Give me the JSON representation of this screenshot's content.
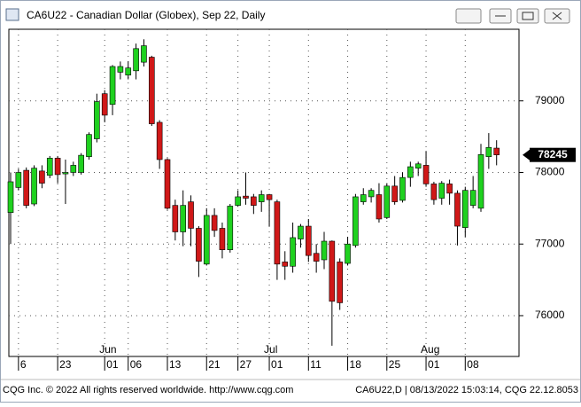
{
  "window": {
    "title": "CA6U22 - Canadian Dollar (Globex), Sep 22, Daily"
  },
  "chart_data": {
    "type": "candlestick",
    "categories": [
      null,
      "6",
      null,
      null,
      null,
      null,
      "23",
      null,
      null,
      null,
      null,
      null,
      "01",
      null,
      null,
      "06",
      null,
      null,
      null,
      null,
      "13",
      null,
      null,
      null,
      null,
      "21",
      null,
      null,
      null,
      "27",
      null,
      null,
      null,
      "01",
      null,
      null,
      null,
      null,
      "11",
      null,
      null,
      null,
      null,
      "18",
      null,
      null,
      null,
      null,
      "25",
      null,
      null,
      null,
      null,
      "01",
      null,
      null,
      null,
      null,
      "08",
      null,
      null,
      null,
      null
    ],
    "month_labels": [
      {
        "index": 12,
        "label": "Jun"
      },
      {
        "index": 33,
        "label": "Jul"
      },
      {
        "index": 53,
        "label": "Aug"
      }
    ],
    "open": [
      77440,
      77790,
      78030,
      77560,
      78020,
      77960,
      78200,
      77980,
      78000,
      78000,
      78220,
      78470,
      79100,
      78950,
      79400,
      79360,
      79420,
      79540,
      79610,
      78700,
      78180,
      77540,
      77170,
      77590,
      77220,
      76720,
      77400,
      77220,
      76920,
      77540,
      77670,
      77660,
      77590,
      77690,
      77590,
      76750,
      76690,
      77070,
      77250,
      76870,
      76780,
      77040,
      76750,
      76730,
      76980,
      77590,
      77660,
      77690,
      77370,
      77810,
      77610,
      77930,
      78060,
      78100,
      77840,
      77640,
      77840,
      77710,
      77230,
      77540,
      77500,
      78220,
      78340
    ],
    "high": [
      78000,
      78050,
      78070,
      78100,
      78100,
      78230,
      78230,
      78180,
      78150,
      78270,
      78560,
      79100,
      79150,
      79500,
      79550,
      79550,
      79800,
      79860,
      79630,
      78730,
      78200,
      77620,
      77750,
      77680,
      77250,
      77500,
      77500,
      77300,
      77560,
      77750,
      78000,
      77700,
      77750,
      77700,
      77620,
      76900,
      77300,
      77280,
      77350,
      77000,
      77170,
      77050,
      76800,
      77100,
      77700,
      77780,
      77780,
      77850,
      77850,
      77950,
      78000,
      78150,
      78150,
      78300,
      77870,
      77880,
      77900,
      77750,
      77800,
      77950,
      78400,
      78550,
      78450
    ],
    "low": [
      77000,
      77750,
      77500,
      77530,
      77780,
      77920,
      77850,
      77560,
      77950,
      77970,
      78180,
      78420,
      78700,
      78800,
      79300,
      79300,
      79300,
      79480,
      78650,
      78050,
      77480,
      77050,
      76970,
      76970,
      76540,
      76700,
      77100,
      76800,
      76880,
      77520,
      77550,
      77420,
      77450,
      77250,
      76500,
      76500,
      76600,
      76950,
      76750,
      76600,
      76650,
      75580,
      76080,
      76700,
      76950,
      77550,
      77580,
      77300,
      77350,
      77550,
      77580,
      77800,
      77950,
      77800,
      77550,
      77550,
      77550,
      76980,
      77100,
      77500,
      77450,
      78050,
      78100
    ],
    "close": [
      77870,
      78000,
      77540,
      78060,
      77850,
      78200,
      77970,
      78000,
      78100,
      78240,
      78530,
      78990,
      78800,
      79480,
      79480,
      79460,
      79730,
      79770,
      78680,
      78180,
      77500,
      77170,
      77540,
      77220,
      76760,
      77400,
      77190,
      76920,
      77530,
      77660,
      77640,
      77540,
      77690,
      77620,
      76720,
      76690,
      77090,
      77250,
      76840,
      76760,
      77040,
      76200,
      76180,
      77000,
      77660,
      77690,
      77750,
      77350,
      77810,
      77590,
      77930,
      78080,
      78120,
      77840,
      77620,
      77850,
      77710,
      77250,
      77750,
      77750,
      78250,
      78350,
      78245
    ],
    "up_color": "#1fd11f",
    "down_color": "#d01818",
    "ylim": [
      75430,
      80000
    ],
    "yticks": [
      76000,
      77000,
      78000,
      79000
    ],
    "grid": true,
    "last_price": 78245
  },
  "footer": {
    "left": "CQG Inc. © 2022 All rights reserved worldwide. http://www.cqg.com",
    "right": "CA6U22,D | 08/13/2022 15:03:14, CQG 22.12.8053"
  }
}
